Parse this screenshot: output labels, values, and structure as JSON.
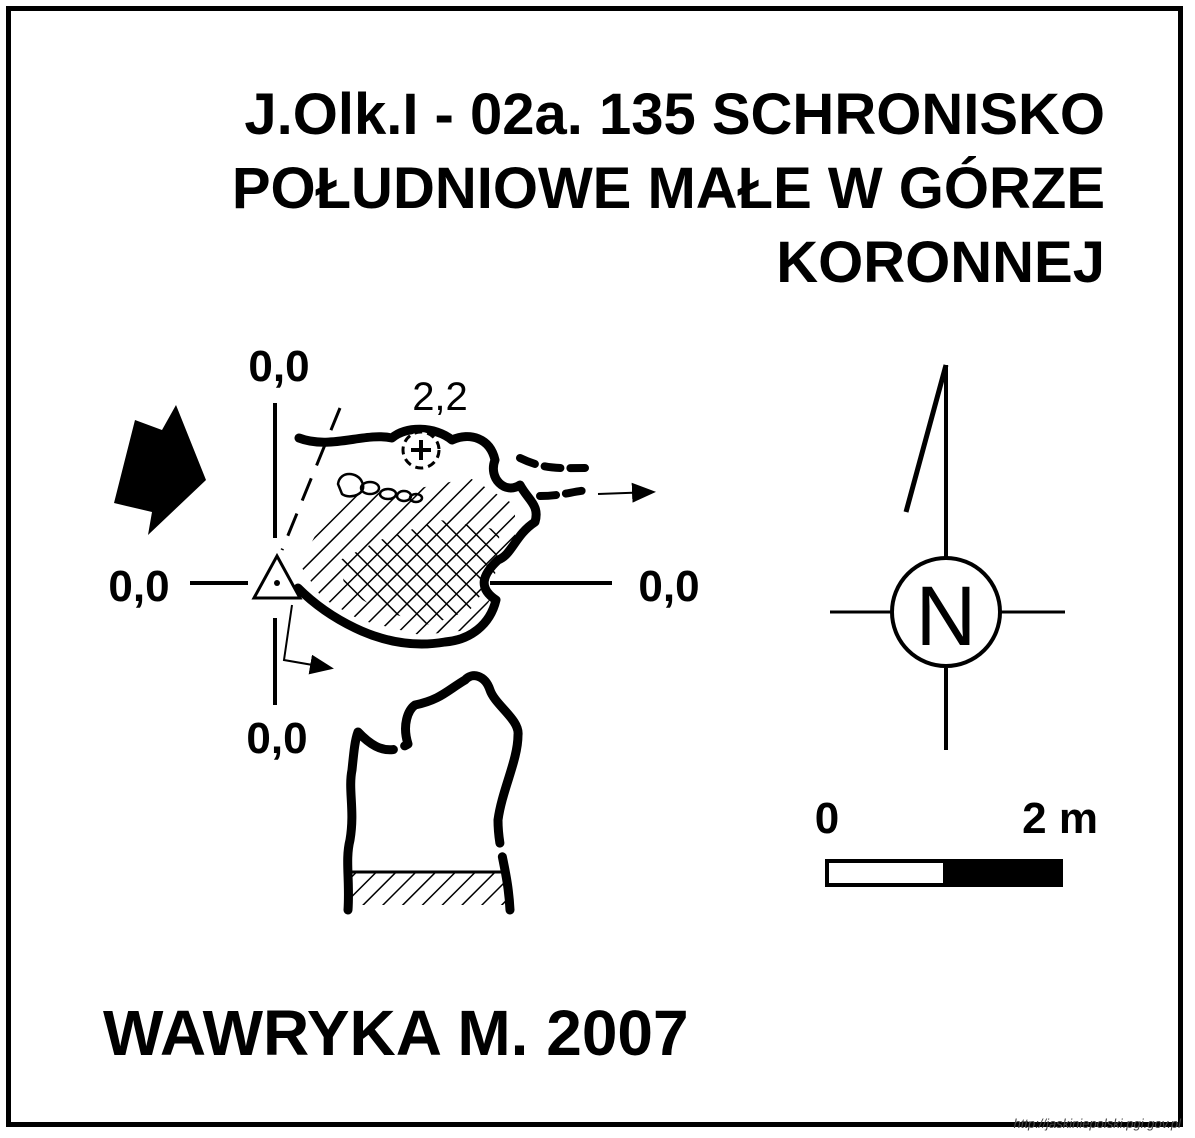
{
  "title": {
    "line1": "J.Olk.I - 02a. 135  SCHRONISKO",
    "line2": "POŁUDNIOWE MAŁE W GÓRZE",
    "line3": "KORONNEJ"
  },
  "author": "WAWRYKA M. 2007",
  "source": "http://jaskiniepolski.pgi.gov.pl",
  "plan": {
    "height_top": "0,0",
    "height_left": "0,0",
    "height_right": "0,0",
    "height_bottom": "0,0",
    "height_point": "2,2"
  },
  "compass": {
    "letter": "N"
  },
  "scale": {
    "start": "0",
    "end": "2 m"
  }
}
